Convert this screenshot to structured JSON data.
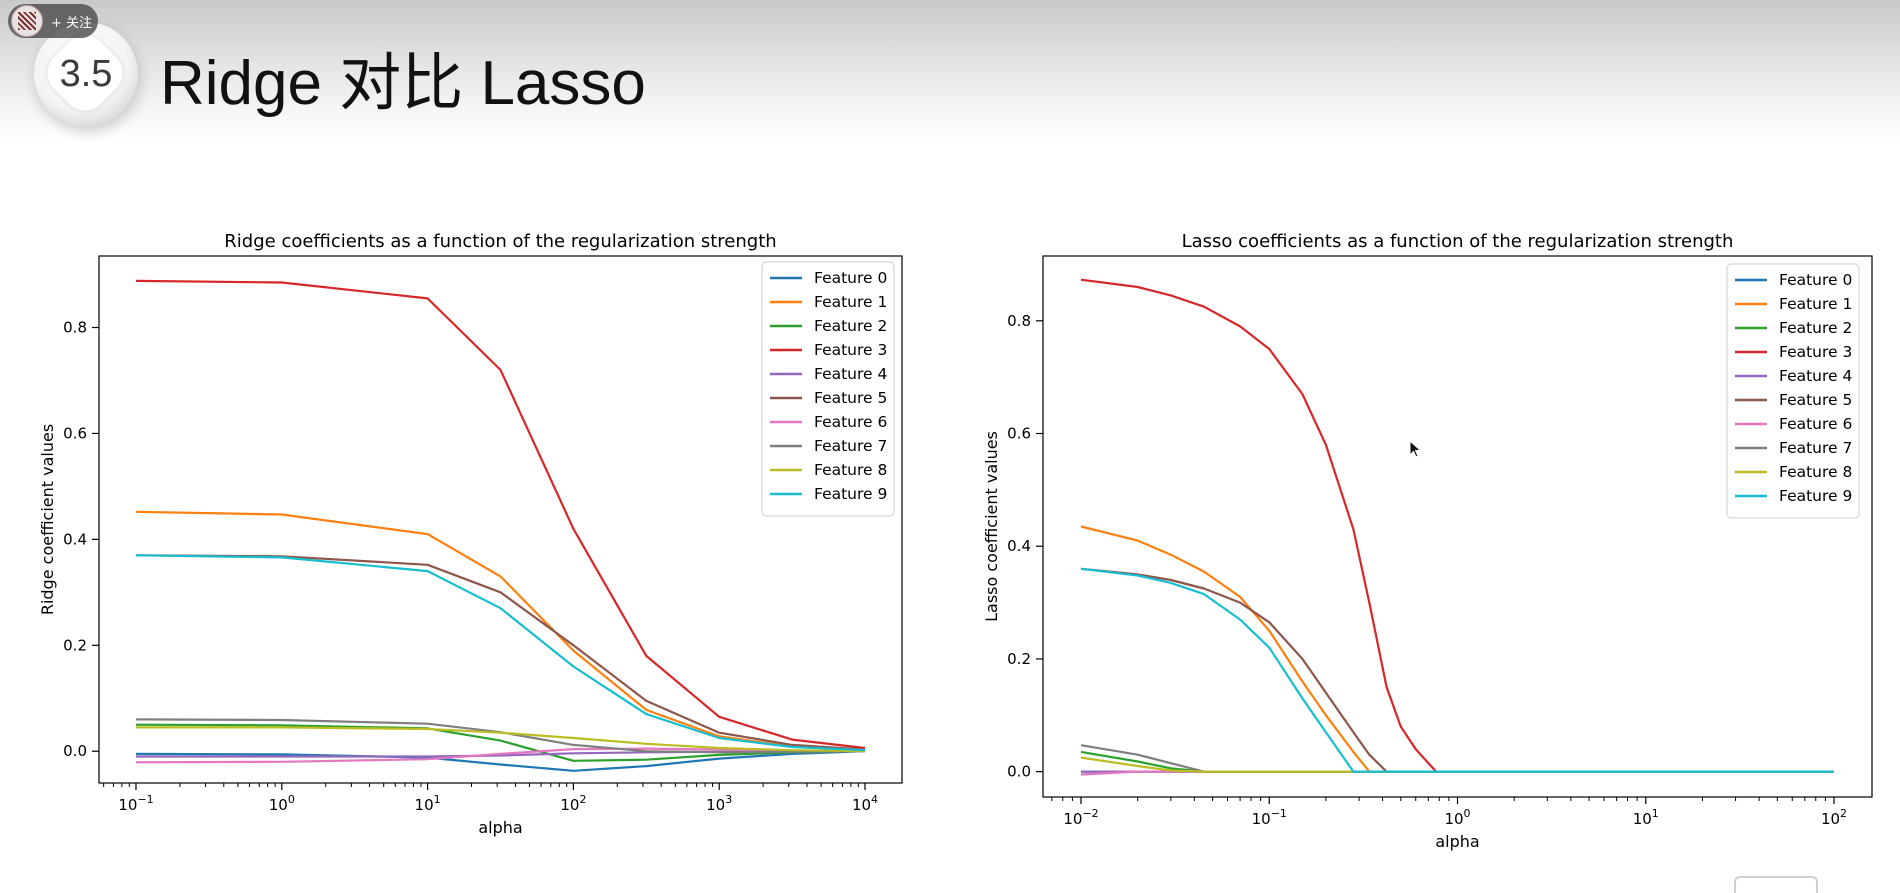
{
  "slide": {
    "section_number": "3.5",
    "title": "Ridge 对比 Lasso",
    "follow_label": "+ 关注"
  },
  "icons": {
    "cursor": "mouse-pointer-icon",
    "avatar": "user-avatar-icon"
  },
  "chart_data": [
    {
      "type": "line",
      "title": "Ridge coefficients as a function of the regularization strength",
      "xlabel": "alpha",
      "ylabel": "Ridge coefficient values",
      "xscale": "log",
      "xlim": [
        0.1,
        10000
      ],
      "ylim": [
        -0.06,
        0.935
      ],
      "xticks": [
        0.1,
        1,
        10,
        100,
        1000,
        10000
      ],
      "xtick_labels": [
        {
          "base": "10",
          "exp": "−1"
        },
        {
          "base": "10",
          "exp": "0"
        },
        {
          "base": "10",
          "exp": "1"
        },
        {
          "base": "10",
          "exp": "2"
        },
        {
          "base": "10",
          "exp": "3"
        },
        {
          "base": "10",
          "exp": "4"
        }
      ],
      "yticks": [
        0.0,
        0.2,
        0.4,
        0.6,
        0.8
      ],
      "ytick_labels": [
        "0.0",
        "0.2",
        "0.4",
        "0.6",
        "0.8"
      ],
      "grid": false,
      "legend_position": "top-right",
      "x": [
        0.1,
        1,
        10,
        31.6,
        100,
        316,
        1000,
        3162,
        10000
      ],
      "series": [
        {
          "name": "Feature 0",
          "color": "#1f77b4",
          "values": [
            -0.005,
            -0.006,
            -0.012,
            -0.025,
            -0.037,
            -0.028,
            -0.014,
            -0.005,
            0.0
          ]
        },
        {
          "name": "Feature 1",
          "color": "#ff7f0e",
          "values": [
            0.452,
            0.447,
            0.41,
            0.33,
            0.19,
            0.078,
            0.028,
            0.009,
            0.003
          ]
        },
        {
          "name": "Feature 2",
          "color": "#2ca02c",
          "values": [
            0.05,
            0.049,
            0.043,
            0.02,
            -0.018,
            -0.016,
            -0.007,
            -0.002,
            0.0
          ]
        },
        {
          "name": "Feature 3",
          "color": "#d62728",
          "values": [
            0.888,
            0.885,
            0.855,
            0.72,
            0.42,
            0.18,
            0.065,
            0.022,
            0.006
          ]
        },
        {
          "name": "Feature 4",
          "color": "#9467bd",
          "values": [
            -0.01,
            -0.01,
            -0.01,
            -0.008,
            -0.004,
            -0.002,
            -0.001,
            0.0,
            0.0
          ]
        },
        {
          "name": "Feature 5",
          "color": "#8c564b",
          "values": [
            0.37,
            0.368,
            0.352,
            0.3,
            0.2,
            0.095,
            0.035,
            0.012,
            0.003
          ]
        },
        {
          "name": "Feature 6",
          "color": "#e377c2",
          "values": [
            -0.021,
            -0.02,
            -0.015,
            -0.005,
            0.004,
            0.005,
            0.003,
            0.001,
            0.0
          ]
        },
        {
          "name": "Feature 7",
          "color": "#7f7f7f",
          "values": [
            0.06,
            0.059,
            0.052,
            0.036,
            0.012,
            0.0,
            -0.002,
            -0.001,
            0.0
          ]
        },
        {
          "name": "Feature 8",
          "color": "#bcbd22",
          "values": [
            0.045,
            0.045,
            0.042,
            0.035,
            0.025,
            0.014,
            0.006,
            0.002,
            0.0
          ]
        },
        {
          "name": "Feature 9",
          "color": "#17becf",
          "values": [
            0.37,
            0.366,
            0.34,
            0.27,
            0.16,
            0.07,
            0.025,
            0.008,
            0.002
          ]
        }
      ]
    },
    {
      "type": "line",
      "title": "Lasso coefficients as a function of the regularization strength",
      "xlabel": "alpha",
      "ylabel": "Lasso coefficient values",
      "xscale": "log",
      "xlim": [
        0.01,
        100
      ],
      "ylim": [
        -0.045,
        0.915
      ],
      "xticks": [
        0.01,
        0.1,
        1,
        10,
        100
      ],
      "xtick_labels": [
        {
          "base": "10",
          "exp": "−2"
        },
        {
          "base": "10",
          "exp": "−1"
        },
        {
          "base": "10",
          "exp": "0"
        },
        {
          "base": "10",
          "exp": "1"
        },
        {
          "base": "10",
          "exp": "2"
        }
      ],
      "yticks": [
        0.0,
        0.2,
        0.4,
        0.6,
        0.8
      ],
      "ytick_labels": [
        "0.0",
        "0.2",
        "0.4",
        "0.6",
        "0.8"
      ],
      "grid": false,
      "legend_position": "top-right",
      "x": [
        0.01,
        0.02,
        0.03,
        0.045,
        0.07,
        0.1,
        0.15,
        0.2,
        0.28,
        0.34,
        0.42,
        0.5,
        0.6,
        0.77,
        1,
        10,
        100
      ],
      "series": [
        {
          "name": "Feature 0",
          "color": "#1f77b4",
          "values": [
            0,
            0,
            0,
            0,
            0,
            0,
            0,
            0,
            0,
            0,
            0,
            0,
            0,
            0,
            0,
            0,
            0
          ]
        },
        {
          "name": "Feature 1",
          "color": "#ff7f0e",
          "values": [
            0.435,
            0.41,
            0.385,
            0.355,
            0.31,
            0.25,
            0.16,
            0.1,
            0.035,
            0,
            0,
            0,
            0,
            0,
            0,
            0,
            0
          ]
        },
        {
          "name": "Feature 2",
          "color": "#2ca02c",
          "values": [
            0.035,
            0.018,
            0.006,
            0,
            0,
            0,
            0,
            0,
            0,
            0,
            0,
            0,
            0,
            0,
            0,
            0,
            0
          ]
        },
        {
          "name": "Feature 3",
          "color": "#d62728",
          "values": [
            0.873,
            0.86,
            0.845,
            0.825,
            0.79,
            0.75,
            0.67,
            0.58,
            0.43,
            0.3,
            0.15,
            0.08,
            0.04,
            0,
            0,
            0,
            0
          ]
        },
        {
          "name": "Feature 4",
          "color": "#9467bd",
          "values": [
            0.0,
            0.0,
            0,
            0,
            0,
            0,
            0,
            0,
            0,
            0,
            0,
            0,
            0,
            0,
            0,
            0,
            0
          ]
        },
        {
          "name": "Feature 5",
          "color": "#8c564b",
          "values": [
            0.36,
            0.35,
            0.34,
            0.325,
            0.3,
            0.265,
            0.2,
            0.14,
            0.07,
            0.03,
            0,
            0,
            0,
            0,
            0,
            0,
            0
          ]
        },
        {
          "name": "Feature 6",
          "color": "#e377c2",
          "values": [
            -0.005,
            0.0,
            0,
            0,
            0,
            0,
            0,
            0,
            0,
            0,
            0,
            0,
            0,
            0,
            0,
            0,
            0
          ]
        },
        {
          "name": "Feature 7",
          "color": "#7f7f7f",
          "values": [
            0.047,
            0.03,
            0.015,
            0,
            0,
            0,
            0,
            0,
            0,
            0,
            0,
            0,
            0,
            0,
            0,
            0,
            0
          ]
        },
        {
          "name": "Feature 8",
          "color": "#bcbd22",
          "values": [
            0.025,
            0.01,
            0.002,
            0,
            0,
            0,
            0,
            0,
            0,
            0,
            0,
            0,
            0,
            0,
            0,
            0,
            0
          ]
        },
        {
          "name": "Feature 9",
          "color": "#17becf",
          "values": [
            0.36,
            0.348,
            0.335,
            0.315,
            0.27,
            0.22,
            0.13,
            0.07,
            0,
            0,
            0,
            0,
            0,
            0,
            0,
            0,
            0
          ]
        }
      ]
    }
  ]
}
